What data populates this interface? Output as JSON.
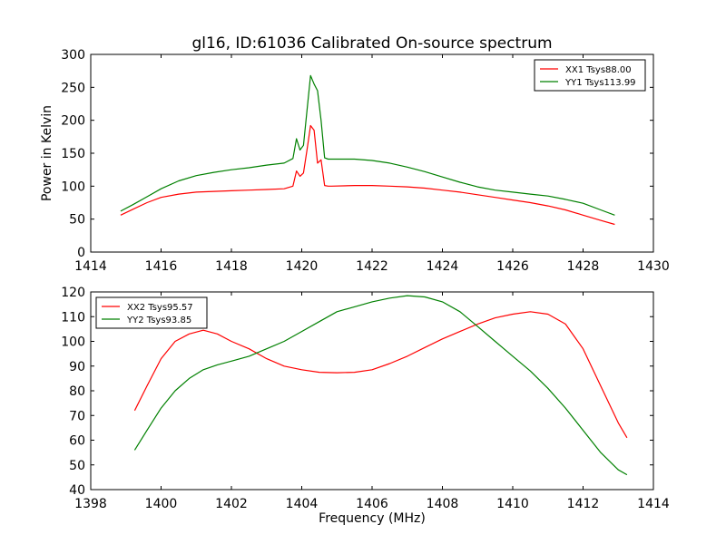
{
  "figure": {
    "title": "gl16, ID:61036 Calibrated On-source spectrum"
  },
  "chart_data": [
    {
      "type": "line",
      "title": "gl16, ID:61036 Calibrated On-source spectrum",
      "xlabel": "",
      "ylabel": "Power in Kelvin",
      "xlim": [
        1414,
        1430
      ],
      "ylim": [
        0,
        300
      ],
      "xticks": [
        1414,
        1416,
        1418,
        1420,
        1422,
        1424,
        1426,
        1428,
        1430
      ],
      "yticks": [
        0,
        50,
        100,
        150,
        200,
        250,
        300
      ],
      "grid": false,
      "legend_position": "top-right",
      "series": [
        {
          "name": "XX1 Tsys88.00",
          "color": "#ff0000",
          "x": [
            1414.85,
            1415.2,
            1415.6,
            1416.0,
            1416.5,
            1417.0,
            1417.5,
            1418.0,
            1418.5,
            1419.0,
            1419.5,
            1419.75,
            1419.85,
            1419.95,
            1420.05,
            1420.15,
            1420.25,
            1420.35,
            1420.45,
            1420.55,
            1420.65,
            1420.75,
            1420.85,
            1421.5,
            1422.0,
            1422.5,
            1423.0,
            1423.5,
            1424.0,
            1424.5,
            1425.0,
            1425.5,
            1426.0,
            1426.5,
            1427.0,
            1427.5,
            1428.0,
            1428.5,
            1428.9
          ],
          "y": [
            56,
            65,
            75,
            83,
            88,
            91,
            92,
            93,
            94,
            95,
            96,
            100,
            123,
            115,
            120,
            155,
            192,
            185,
            135,
            140,
            101,
            100,
            100,
            101,
            101,
            100,
            99,
            97,
            94,
            91,
            87,
            83,
            79,
            75,
            70,
            64,
            56,
            48,
            42
          ]
        },
        {
          "name": "YY1 Tsys113.99",
          "color": "#008000",
          "x": [
            1414.85,
            1415.2,
            1415.6,
            1416.0,
            1416.5,
            1417.0,
            1417.5,
            1418.0,
            1418.5,
            1419.0,
            1419.5,
            1419.75,
            1419.85,
            1419.95,
            1420.05,
            1420.15,
            1420.25,
            1420.35,
            1420.45,
            1420.55,
            1420.65,
            1420.75,
            1420.85,
            1421.5,
            1422.0,
            1422.5,
            1423.0,
            1423.5,
            1424.0,
            1424.5,
            1425.0,
            1425.5,
            1426.0,
            1426.5,
            1427.0,
            1427.5,
            1428.0,
            1428.5,
            1428.9
          ],
          "y": [
            62,
            72,
            84,
            96,
            108,
            116,
            121,
            125,
            128,
            132,
            135,
            142,
            172,
            155,
            162,
            215,
            268,
            255,
            245,
            200,
            143,
            141,
            141,
            141,
            139,
            135,
            129,
            122,
            114,
            106,
            99,
            94,
            91,
            88,
            85,
            80,
            74,
            64,
            56
          ]
        }
      ]
    },
    {
      "type": "line",
      "title": "",
      "xlabel": "Frequency (MHz)",
      "ylabel": "",
      "xlim": [
        1398,
        1414
      ],
      "ylim": [
        40,
        120
      ],
      "xticks": [
        1398,
        1400,
        1402,
        1404,
        1406,
        1408,
        1410,
        1412,
        1414
      ],
      "yticks": [
        40,
        50,
        60,
        70,
        80,
        90,
        100,
        110,
        120
      ],
      "grid": false,
      "legend_position": "top-left",
      "series": [
        {
          "name": "XX2 Tsys95.57",
          "color": "#ff0000",
          "x": [
            1399.25,
            1399.6,
            1400.0,
            1400.4,
            1400.8,
            1401.2,
            1401.6,
            1402.0,
            1402.5,
            1403.0,
            1403.5,
            1404.0,
            1404.5,
            1405.0,
            1405.5,
            1406.0,
            1406.5,
            1407.0,
            1407.5,
            1408.0,
            1408.5,
            1409.0,
            1409.5,
            1410.0,
            1410.5,
            1411.0,
            1411.5,
            1412.0,
            1412.5,
            1413.0,
            1413.25
          ],
          "y": [
            72,
            82,
            93,
            100,
            103,
            104.5,
            103,
            100,
            97,
            93,
            90,
            88.5,
            87.5,
            87.3,
            87.5,
            88.5,
            91,
            94,
            97.5,
            101,
            104,
            107,
            109.5,
            111,
            112,
            111,
            107,
            97,
            82,
            67,
            61
          ]
        },
        {
          "name": "YY2 Tsys93.85",
          "color": "#008000",
          "x": [
            1399.25,
            1399.6,
            1400.0,
            1400.4,
            1400.8,
            1401.2,
            1401.6,
            1402.0,
            1402.5,
            1403.0,
            1403.5,
            1404.0,
            1404.5,
            1405.0,
            1405.5,
            1406.0,
            1406.5,
            1407.0,
            1407.5,
            1408.0,
            1408.5,
            1409.0,
            1409.5,
            1410.0,
            1410.5,
            1411.0,
            1411.5,
            1412.0,
            1412.5,
            1413.0,
            1413.25
          ],
          "y": [
            56,
            64,
            73,
            80,
            85,
            88.5,
            90.5,
            92,
            94,
            97,
            100,
            104,
            108,
            112,
            114,
            116,
            117.5,
            118.5,
            118,
            116,
            112,
            106,
            100,
            94,
            88,
            81,
            73,
            64,
            55,
            48,
            46
          ]
        }
      ]
    }
  ]
}
